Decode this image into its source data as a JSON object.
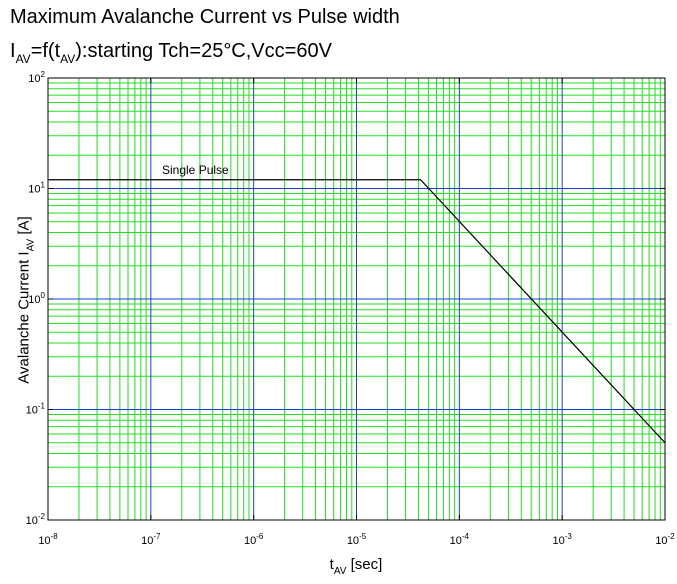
{
  "chart_data": {
    "type": "line",
    "title": {
      "line1": "Maximum Avalanche Current vs Pulse width",
      "line2_prefix": "I",
      "line2_sub1": "AV",
      "line2_mid": "=f(t",
      "line2_sub2": "AV",
      "line2_suffix": "):starting Tch=25°C,Vcc=60V"
    },
    "xlabel": {
      "main": "t",
      "sub": "AV",
      "unit": " [sec]"
    },
    "ylabel": {
      "main": "Avalanche Current I",
      "sub": "AV",
      "unit": "  [A]"
    },
    "x_scale": "log",
    "y_scale": "log",
    "xlim": [
      1e-08,
      0.01
    ],
    "ylim": [
      0.01,
      100
    ],
    "x_ticks": [
      {
        "base": "10",
        "exp": "-8",
        "value": 1e-08
      },
      {
        "base": "10",
        "exp": "-7",
        "value": 1e-07
      },
      {
        "base": "10",
        "exp": "-6",
        "value": 1e-06
      },
      {
        "base": "10",
        "exp": "-5",
        "value": 1e-05
      },
      {
        "base": "10",
        "exp": "-4",
        "value": 0.0001
      },
      {
        "base": "10",
        "exp": "-3",
        "value": 0.001
      },
      {
        "base": "10",
        "exp": "-2",
        "value": 0.01
      }
    ],
    "y_ticks": [
      {
        "base": "10",
        "exp": "-2",
        "value": 0.01
      },
      {
        "base": "10",
        "exp": "-1",
        "value": 0.1
      },
      {
        "base": "10",
        "exp": "0",
        "value": 1
      },
      {
        "base": "10",
        "exp": "1",
        "value": 10
      },
      {
        "base": "10",
        "exp": "2",
        "value": 100
      }
    ],
    "grid": true,
    "colors": {
      "major_grid": "#1a3fd6",
      "minor_grid": "#22dd22",
      "line": "#000000"
    },
    "series": [
      {
        "label": "Single Pulse",
        "x": [
          1e-08,
          4.2e-05,
          0.01
        ],
        "y": [
          12,
          12,
          0.05
        ]
      }
    ]
  }
}
